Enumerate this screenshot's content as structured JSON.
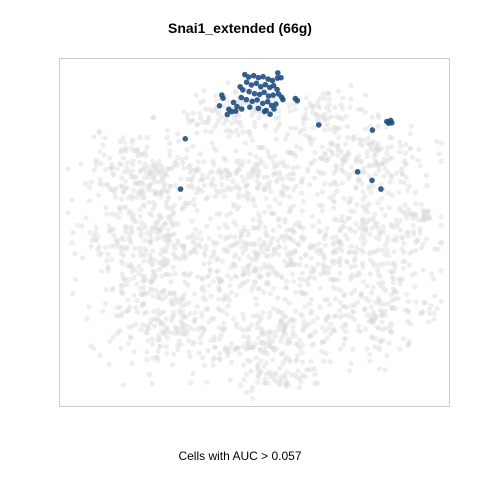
{
  "chart_data": {
    "type": "scatter",
    "title": "Snai1_extended (66g)",
    "caption": "Cells with AUC > 0.057",
    "xlabel": "",
    "ylabel": "",
    "xlim": [
      0,
      100
    ],
    "ylim": [
      0,
      100
    ],
    "grid": false,
    "legend": "none",
    "colors": {
      "background_points": "#d9d9d9",
      "highlight_points": "#1f4e82",
      "frame": "#cccccc"
    },
    "series": [
      {
        "role": "background",
        "regions": [
          {
            "cx": 24,
            "cy": 67,
            "rx": 14,
            "ry": 10,
            "n": 220
          },
          {
            "cx": 52,
            "cy": 66,
            "rx": 14,
            "ry": 8,
            "n": 170
          },
          {
            "cx": 77,
            "cy": 72,
            "rx": 15,
            "ry": 10,
            "n": 190
          },
          {
            "cx": 44,
            "cy": 84,
            "rx": 12,
            "ry": 6,
            "n": 110
          },
          {
            "cx": 68,
            "cy": 85,
            "rx": 8,
            "ry": 5,
            "n": 60
          },
          {
            "cx": 23,
            "cy": 47,
            "rx": 14,
            "ry": 13,
            "n": 280
          },
          {
            "cx": 53,
            "cy": 44,
            "rx": 14,
            "ry": 13,
            "n": 280
          },
          {
            "cx": 80,
            "cy": 47,
            "rx": 14,
            "ry": 12,
            "n": 230
          },
          {
            "cx": 28,
            "cy": 25,
            "rx": 15,
            "ry": 12,
            "n": 230
          },
          {
            "cx": 56,
            "cy": 20,
            "rx": 14,
            "ry": 10,
            "n": 210
          },
          {
            "cx": 82,
            "cy": 27,
            "rx": 11,
            "ry": 10,
            "n": 150
          },
          {
            "cx": 55,
            "cy": 8,
            "rx": 7,
            "ry": 4,
            "n": 45
          },
          {
            "cx": 92,
            "cy": 55,
            "rx": 4,
            "ry": 3,
            "n": 30
          }
        ]
      },
      {
        "role": "highlighted",
        "points": [
          {
            "x": 47.5,
            "y": 95.5
          },
          {
            "x": 48.5,
            "y": 94.8
          },
          {
            "x": 49.8,
            "y": 95.2
          },
          {
            "x": 51.0,
            "y": 94.6
          },
          {
            "x": 52.2,
            "y": 94.9
          },
          {
            "x": 53.5,
            "y": 94.2
          },
          {
            "x": 54.6,
            "y": 93.8
          },
          {
            "x": 55.9,
            "y": 94.5
          },
          {
            "x": 48.0,
            "y": 93.3
          },
          {
            "x": 49.2,
            "y": 92.5
          },
          {
            "x": 50.5,
            "y": 93.0
          },
          {
            "x": 51.6,
            "y": 92.0
          },
          {
            "x": 52.8,
            "y": 92.6
          },
          {
            "x": 53.9,
            "y": 91.8
          },
          {
            "x": 54.9,
            "y": 92.3
          },
          {
            "x": 55.8,
            "y": 91.2
          },
          {
            "x": 47.0,
            "y": 91.1
          },
          {
            "x": 48.6,
            "y": 90.6
          },
          {
            "x": 50.0,
            "y": 90.0
          },
          {
            "x": 51.3,
            "y": 89.8
          },
          {
            "x": 52.5,
            "y": 90.4
          },
          {
            "x": 53.6,
            "y": 89.3
          },
          {
            "x": 54.8,
            "y": 89.6
          },
          {
            "x": 56.2,
            "y": 89.9
          },
          {
            "x": 46.6,
            "y": 88.9
          },
          {
            "x": 47.9,
            "y": 88.3
          },
          {
            "x": 49.4,
            "y": 87.8
          },
          {
            "x": 50.7,
            "y": 88.2
          },
          {
            "x": 52.1,
            "y": 87.2
          },
          {
            "x": 53.4,
            "y": 87.7
          },
          {
            "x": 54.4,
            "y": 86.6
          },
          {
            "x": 55.5,
            "y": 87.0
          },
          {
            "x": 44.6,
            "y": 87.5
          },
          {
            "x": 45.5,
            "y": 86.3
          },
          {
            "x": 46.7,
            "y": 85.6
          },
          {
            "x": 48.8,
            "y": 86.1
          },
          {
            "x": 51.0,
            "y": 85.8
          },
          {
            "x": 53.0,
            "y": 85.2
          },
          {
            "x": 55.0,
            "y": 85.6
          },
          {
            "x": 56.8,
            "y": 94.6
          },
          {
            "x": 41.6,
            "y": 89.6
          },
          {
            "x": 41.9,
            "y": 88.7
          },
          {
            "x": 43.4,
            "y": 85.5
          },
          {
            "x": 44.1,
            "y": 84.8
          },
          {
            "x": 43.0,
            "y": 84.0
          },
          {
            "x": 45.2,
            "y": 85.0
          },
          {
            "x": 57.0,
            "y": 89.0
          },
          {
            "x": 57.3,
            "y": 88.3
          },
          {
            "x": 52.6,
            "y": 84.9
          },
          {
            "x": 54.0,
            "y": 84.1
          },
          {
            "x": 56.0,
            "y": 96.0
          },
          {
            "x": 46.3,
            "y": 92.0
          },
          {
            "x": 60.5,
            "y": 88.6
          },
          {
            "x": 61.0,
            "y": 88.0
          },
          {
            "x": 66.5,
            "y": 81.0
          },
          {
            "x": 84.0,
            "y": 82.0
          },
          {
            "x": 84.5,
            "y": 81.5
          },
          {
            "x": 85.0,
            "y": 82.3
          },
          {
            "x": 85.3,
            "y": 81.6
          },
          {
            "x": 80.3,
            "y": 79.5
          },
          {
            "x": 32.2,
            "y": 77.0
          },
          {
            "x": 76.5,
            "y": 67.5
          },
          {
            "x": 80.2,
            "y": 65.0
          },
          {
            "x": 82.5,
            "y": 62.5
          },
          {
            "x": 31.0,
            "y": 62.5
          },
          {
            "x": 41.0,
            "y": 86.5
          }
        ]
      }
    ]
  }
}
